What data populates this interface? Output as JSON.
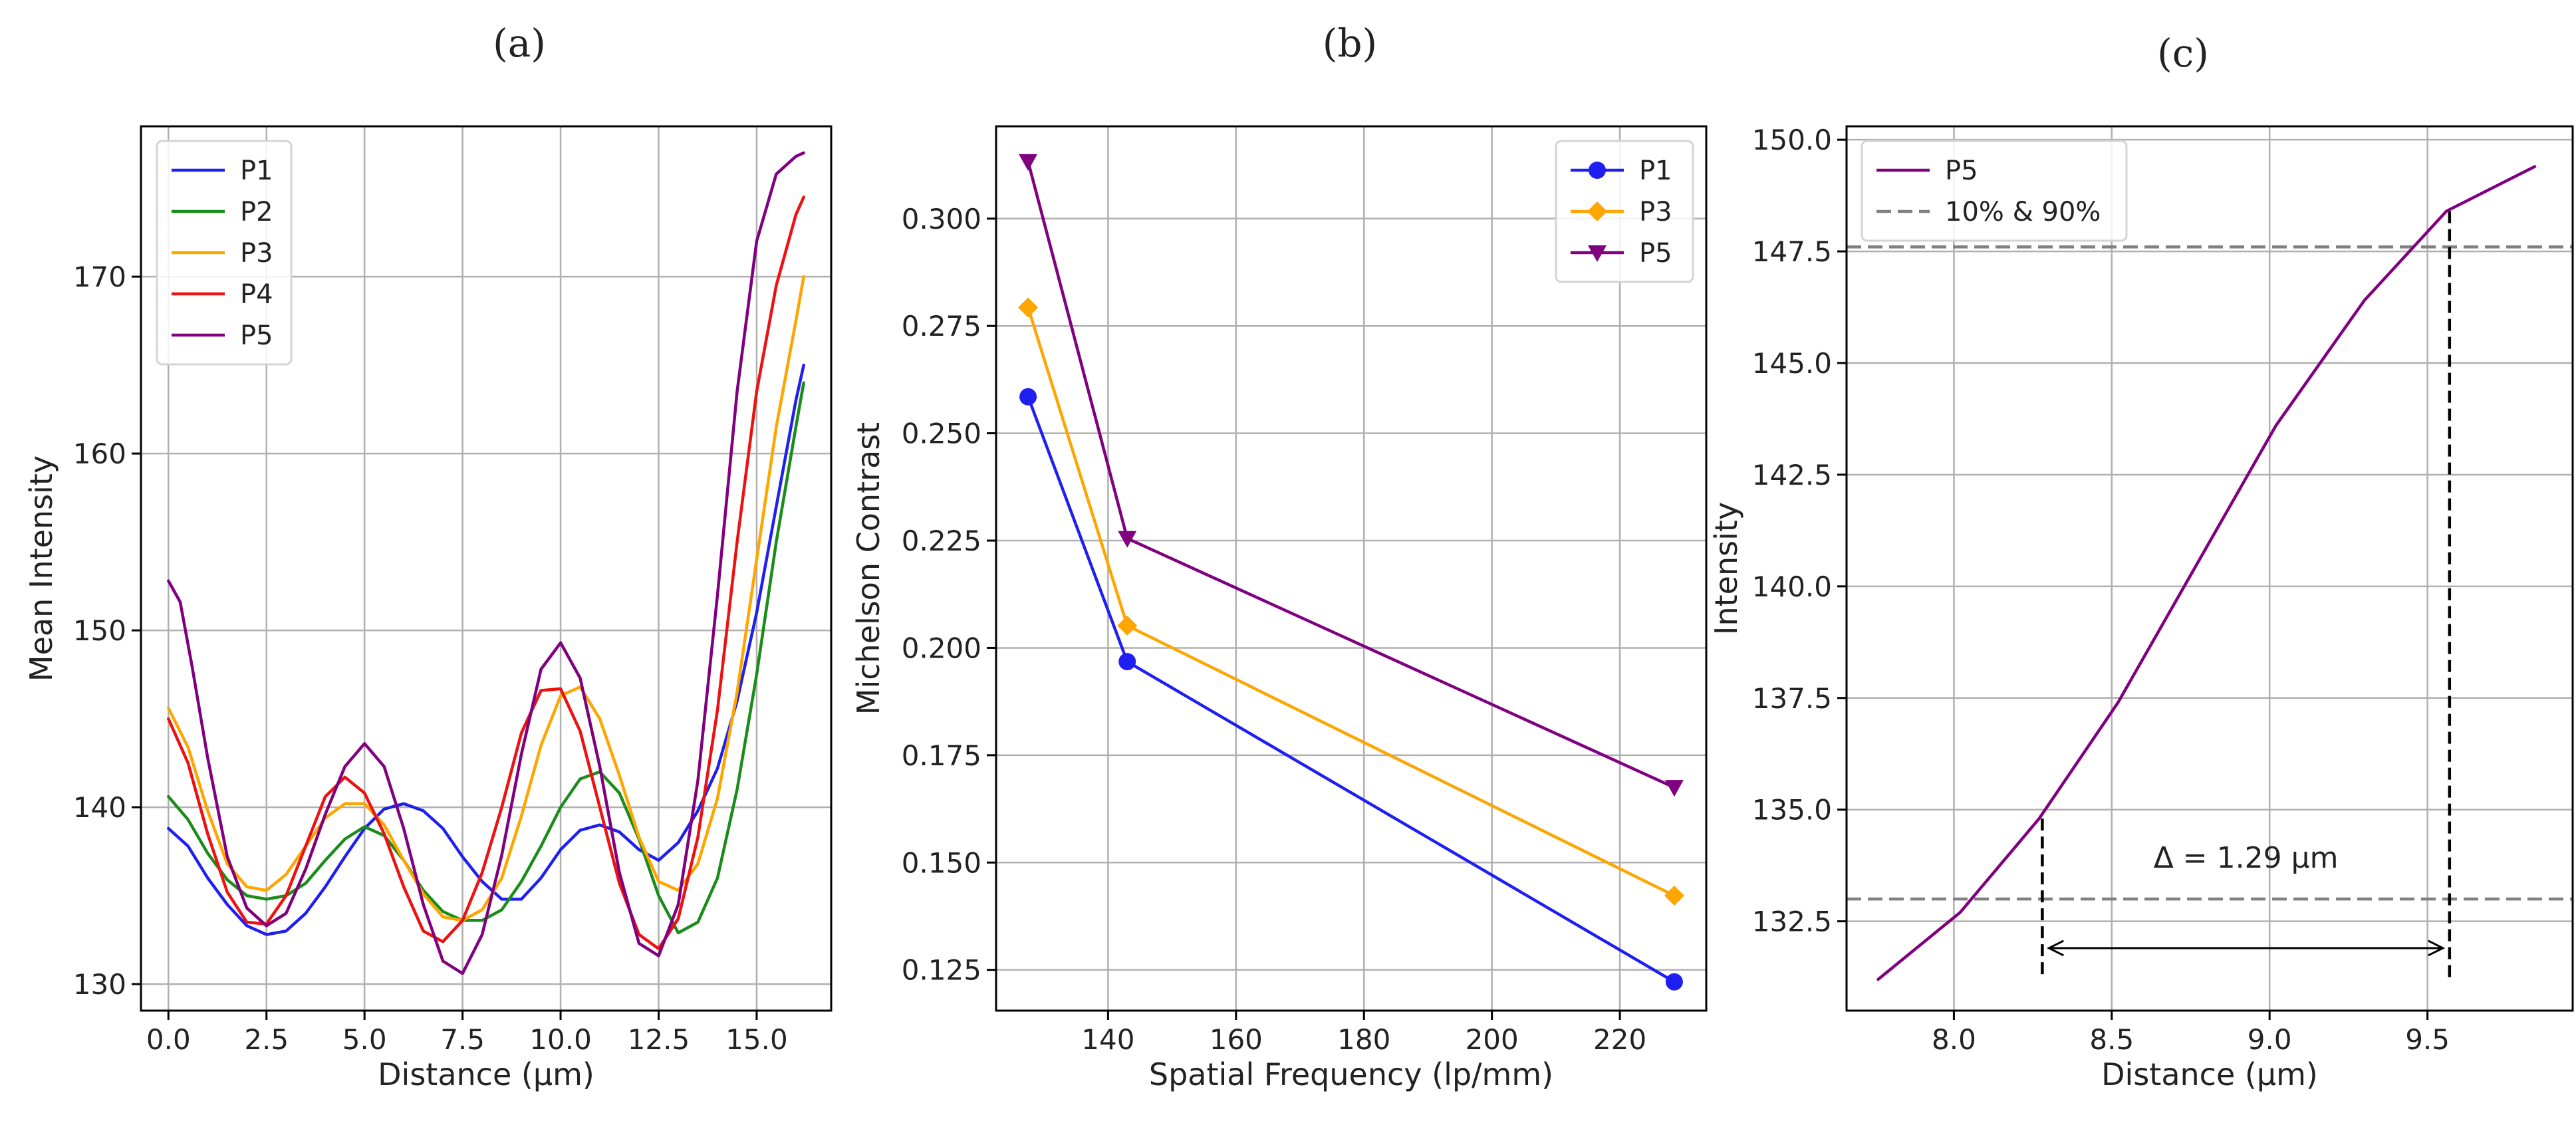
{
  "chart_data": [
    {
      "panel_label": "(a)",
      "type": "line",
      "title": "",
      "xlabel": "Distance (µm)",
      "ylabel": "Mean Intensity",
      "xlim": [
        -0.7,
        16.9
      ],
      "ylim": [
        128.5,
        178.5
      ],
      "xticks": [
        0.0,
        2.5,
        5.0,
        7.5,
        10.0,
        12.5,
        15.0
      ],
      "xtick_labels": [
        "0.0",
        "2.5",
        "5.0",
        "7.5",
        "10.0",
        "12.5",
        "15.0"
      ],
      "yticks": [
        130,
        140,
        150,
        160,
        170
      ],
      "ytick_labels": [
        "130",
        "140",
        "150",
        "160",
        "170"
      ],
      "grid": true,
      "legend_position": "top-left",
      "series": [
        {
          "name": "P1",
          "color": "#1f1ff2",
          "x": [
            0,
            0.5,
            1,
            1.5,
            2,
            2.5,
            3,
            3.5,
            4,
            4.5,
            5,
            5.5,
            6,
            6.5,
            7,
            7.5,
            8,
            8.5,
            9,
            9.5,
            10,
            10.5,
            11,
            11.5,
            12,
            12.5,
            13,
            13.5,
            14,
            14.5,
            15,
            15.5,
            16,
            16.2
          ],
          "y": [
            138.8,
            137.8,
            136.0,
            134.5,
            133.3,
            132.8,
            133.0,
            134.0,
            135.5,
            137.2,
            138.8,
            139.9,
            140.2,
            139.8,
            138.8,
            137.2,
            135.8,
            134.8,
            134.8,
            136.0,
            137.6,
            138.7,
            139.0,
            138.6,
            137.6,
            137.0,
            138.0,
            139.8,
            142.2,
            146.0,
            151.0,
            157.0,
            163.0,
            165.0
          ]
        },
        {
          "name": "P2",
          "color": "#1a8c1a",
          "x": [
            0,
            0.5,
            1,
            1.5,
            2,
            2.5,
            3,
            3.5,
            4,
            4.5,
            5,
            5.5,
            6,
            6.5,
            7,
            7.5,
            8,
            8.5,
            9,
            9.5,
            10,
            10.5,
            11,
            11.5,
            12,
            12.5,
            13,
            13.5,
            14,
            14.5,
            15,
            15.5,
            16,
            16.2
          ],
          "y": [
            140.6,
            139.3,
            137.4,
            135.9,
            135.0,
            134.8,
            135.0,
            135.7,
            137.0,
            138.2,
            138.9,
            138.4,
            137.0,
            135.3,
            134.1,
            133.6,
            133.6,
            134.2,
            135.8,
            137.8,
            140.0,
            141.6,
            142.0,
            140.8,
            138.2,
            135.0,
            132.9,
            133.5,
            136.0,
            141.0,
            147.5,
            155.0,
            161.5,
            164.0
          ]
        },
        {
          "name": "P3",
          "color": "#ffa500",
          "x": [
            0,
            0.5,
            1,
            1.5,
            2,
            2.5,
            3,
            3.5,
            4,
            4.5,
            5,
            5.5,
            6,
            6.5,
            7,
            7.5,
            8,
            8.5,
            9,
            9.5,
            10,
            10.5,
            11,
            11.5,
            12,
            12.5,
            13,
            13.5,
            14,
            14.5,
            15,
            15.5,
            16,
            16.2
          ],
          "y": [
            145.6,
            143.4,
            139.8,
            136.8,
            135.5,
            135.3,
            136.2,
            137.8,
            139.4,
            140.2,
            140.2,
            139.0,
            137.0,
            135.1,
            133.8,
            133.6,
            134.2,
            136.0,
            139.5,
            143.5,
            146.3,
            146.8,
            145.0,
            141.8,
            138.3,
            135.8,
            135.3,
            136.8,
            140.5,
            146.5,
            154.0,
            161.5,
            167.5,
            170.0
          ]
        },
        {
          "name": "P4",
          "color": "#ee1111",
          "x": [
            0,
            0.5,
            1,
            1.5,
            2,
            2.5,
            3,
            3.5,
            4,
            4.5,
            5,
            5.5,
            6,
            6.5,
            7,
            7.5,
            8,
            8.5,
            9,
            9.5,
            10,
            10.5,
            11,
            11.5,
            12,
            12.5,
            13,
            13.5,
            14,
            14.5,
            15,
            15.5,
            16,
            16.2
          ],
          "y": [
            145.0,
            142.5,
            138.5,
            135.2,
            133.5,
            133.4,
            135.0,
            137.8,
            140.6,
            141.7,
            140.8,
            138.5,
            135.5,
            133.0,
            132.4,
            133.6,
            136.3,
            140.0,
            144.2,
            146.6,
            146.7,
            144.3,
            140.0,
            135.7,
            132.8,
            132.0,
            133.7,
            138.3,
            145.5,
            155.0,
            163.5,
            169.5,
            173.5,
            174.5
          ]
        },
        {
          "name": "P5",
          "color": "#800080",
          "x": [
            0,
            0.3,
            0.6,
            1,
            1.5,
            2,
            2.5,
            3,
            3.5,
            4,
            4.5,
            5,
            5.5,
            6,
            6.5,
            7,
            7.5,
            8,
            8.5,
            9,
            9.5,
            10,
            10.5,
            11,
            11.5,
            12,
            12.5,
            13,
            13.5,
            14,
            14.5,
            15,
            15.5,
            16,
            16.2
          ],
          "y": [
            152.8,
            151.6,
            148.0,
            142.8,
            137.2,
            134.3,
            133.3,
            134.0,
            136.5,
            139.6,
            142.3,
            143.6,
            142.3,
            138.8,
            134.5,
            131.3,
            130.6,
            132.8,
            137.3,
            143.0,
            147.8,
            149.3,
            147.3,
            142.3,
            136.3,
            132.3,
            131.6,
            134.5,
            141.5,
            152.0,
            163.5,
            172.0,
            175.8,
            176.8,
            177.0
          ]
        }
      ]
    },
    {
      "panel_label": "(b)",
      "type": "line",
      "title": "",
      "xlabel": "Spatial Frequency (lp/mm)",
      "ylabel": "Michelson Contrast",
      "xlim": [
        122.5,
        233.5
      ],
      "ylim": [
        0.1155,
        0.3215
      ],
      "xticks": [
        140,
        160,
        180,
        200,
        220
      ],
      "xtick_labels": [
        "140",
        "160",
        "180",
        "200",
        "220"
      ],
      "yticks": [
        0.125,
        0.15,
        0.175,
        0.2,
        0.225,
        0.25,
        0.275,
        0.3
      ],
      "ytick_labels": [
        "0.125",
        "0.150",
        "0.175",
        "0.200",
        "0.225",
        "0.250",
        "0.275",
        "0.300"
      ],
      "grid": true,
      "legend_position": "top-right",
      "series": [
        {
          "name": "P1",
          "color": "#1f1ff2",
          "marker": "circle",
          "x": [
            127.5,
            143.0,
            228.5
          ],
          "y": [
            0.2585,
            0.1968,
            0.1222
          ]
        },
        {
          "name": "P3",
          "color": "#ffa500",
          "marker": "diamond",
          "x": [
            127.5,
            143.0,
            228.5
          ],
          "y": [
            0.2793,
            0.2052,
            0.1423
          ]
        },
        {
          "name": "P5",
          "color": "#800080",
          "marker": "triangle-down",
          "x": [
            127.5,
            143.0,
            228.5
          ],
          "y": [
            0.3133,
            0.2255,
            0.1675
          ]
        }
      ]
    },
    {
      "panel_label": "(c)",
      "type": "line",
      "title": "",
      "xlabel": "Distance (µm)",
      "ylabel": "Intensity",
      "xlim": [
        7.66,
        9.96
      ],
      "ylim": [
        130.5,
        150.3
      ],
      "xticks": [
        8.0,
        8.5,
        9.0,
        9.5
      ],
      "xtick_labels": [
        "8.0",
        "8.5",
        "9.0",
        "9.5"
      ],
      "yticks": [
        132.5,
        135.0,
        137.5,
        140.0,
        142.5,
        145.0,
        147.5,
        150.0
      ],
      "ytick_labels": [
        "132.5",
        "135.0",
        "137.5",
        "140.0",
        "142.5",
        "145.0",
        "147.5",
        "150.0"
      ],
      "grid": true,
      "legend_position": "top-left",
      "series": [
        {
          "name": "P5",
          "color": "#800080",
          "x": [
            7.76,
            8.02,
            8.27,
            8.52,
            8.77,
            9.02,
            9.3,
            9.56,
            9.84
          ],
          "y": [
            131.2,
            132.7,
            134.8,
            137.4,
            140.5,
            143.6,
            146.4,
            148.4,
            149.4
          ]
        }
      ],
      "threshold_lines": {
        "label": "10% & 90%",
        "color": "#808080",
        "y": [
          133.0,
          147.6
        ]
      },
      "crossing_x": [
        8.28,
        9.57
      ],
      "annotation": "Δ = 1.29 µm"
    }
  ]
}
